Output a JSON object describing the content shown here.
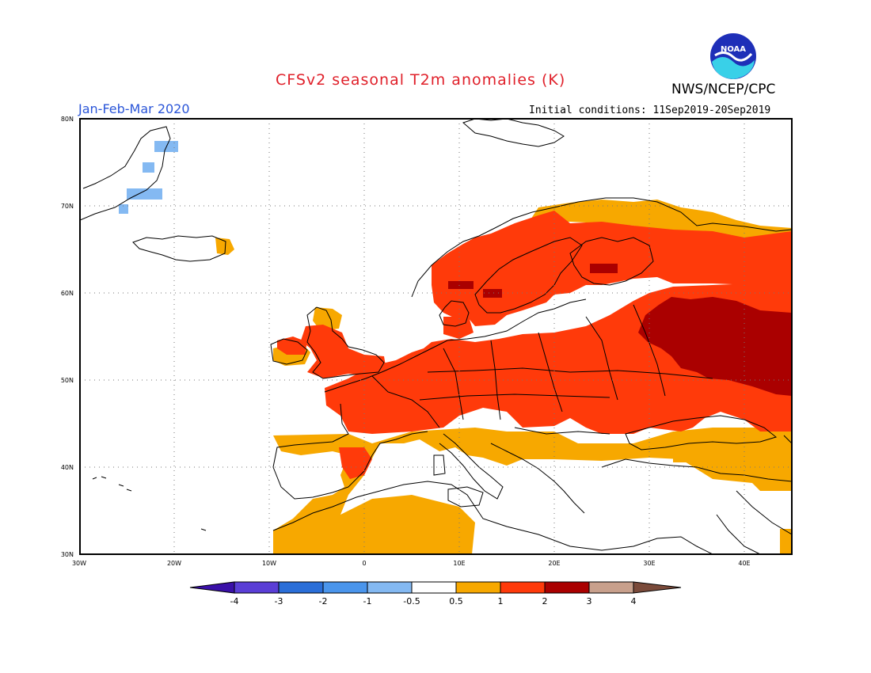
{
  "title": "CFSv2 seasonal T2m anomalies (K)",
  "agency": "NWS/NCEP/CPC",
  "logo_text": "NOAA",
  "season": "Jan-Feb-Mar 2020",
  "initial_conditions": "Initial conditions: 11Sep2019-20Sep2019",
  "colors": {
    "title": "#e0202a",
    "season": "#2a55d8",
    "gt_0_5": "#f7a800",
    "gt_1": "#ff3a0a",
    "gt_2": "#aa0000",
    "gt_3": "#c8a08c",
    "lt_neg_0_5": "#84b9f2",
    "lt_neg_1": "#4a8fe8"
  },
  "map": {
    "lon_range": [
      -30,
      45
    ],
    "lat_range": [
      30,
      80
    ],
    "lat_labels": [
      "80N",
      "70N",
      "60N",
      "50N",
      "40N",
      "30N"
    ],
    "lon_labels": [
      "30W",
      "20W",
      "10W",
      "0",
      "10E",
      "20E",
      "30E",
      "40E"
    ],
    "grid": true
  },
  "colorbar": {
    "tick_labels": [
      "-4",
      "-3",
      "-2",
      "-1",
      "-0.5",
      "0.5",
      "1",
      "2",
      "3",
      "4"
    ],
    "bins": [
      {
        "color": "#3a10a8"
      },
      {
        "color": "#5a3ed6"
      },
      {
        "color": "#2a6ed8"
      },
      {
        "color": "#4a95ec"
      },
      {
        "color": "#84b9f2"
      },
      {
        "color": "#ffffff"
      },
      {
        "color": "#f7a800"
      },
      {
        "color": "#ff3a0a"
      },
      {
        "color": "#aa0000"
      },
      {
        "color": "#c8a08c"
      },
      {
        "color": "#7a4a3a"
      }
    ]
  }
}
